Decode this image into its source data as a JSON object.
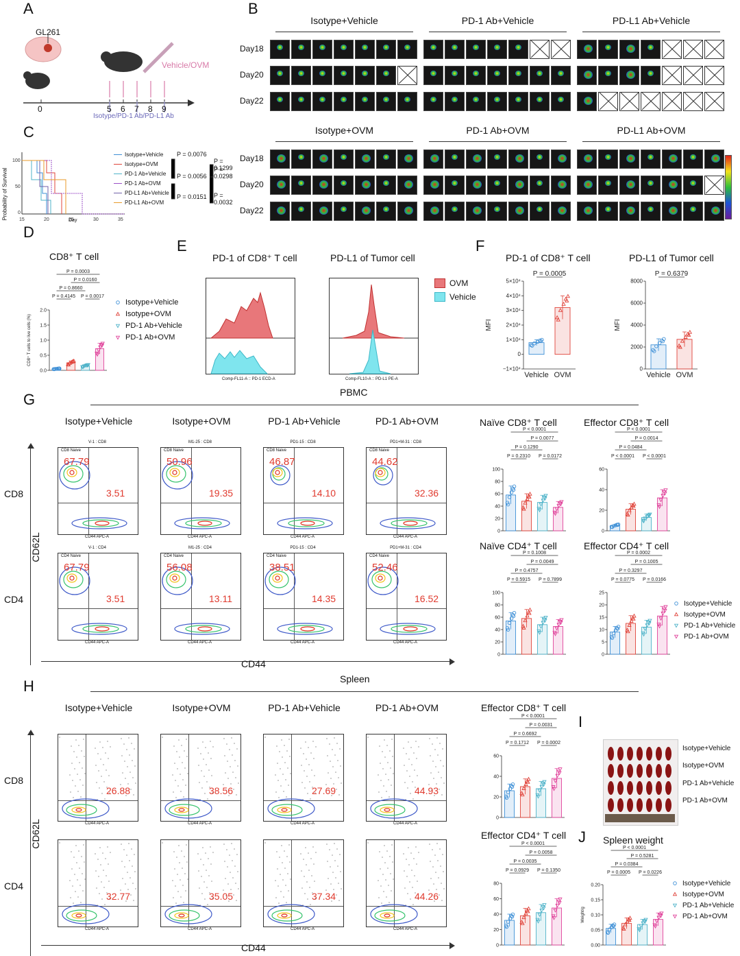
{
  "panels": {
    "A": {
      "letter": "A",
      "cell_line": "GL261",
      "treatment": "Vehicle/OVM",
      "antibody": "Isotype/PD-1 Ab/PD-L1 Ab",
      "timeline_ticks": [
        "0",
        "5",
        "6",
        "7",
        "8",
        "9"
      ]
    },
    "B": {
      "letter": "B",
      "groups_top": [
        "Isotype+Vehicle",
        "PD-1 Ab+Vehicle",
        "PD-L1 Ab+Vehicle"
      ],
      "groups_bottom": [
        "Isotype+OVM",
        "PD-1 Ab+OVM",
        "PD-L1 Ab+OVM"
      ],
      "days": [
        "Day18",
        "Day20",
        "Day22"
      ],
      "alive_top": [
        [
          7,
          6,
          7
        ],
        [
          5,
          7,
          7
        ],
        [
          4,
          4,
          1
        ]
      ],
      "alive_bottom": [
        [
          7,
          7,
          7
        ],
        [
          7,
          7,
          7
        ],
        [
          7,
          6,
          7
        ]
      ]
    },
    "C": {
      "letter": "C",
      "ylabel": "Probability of Survival",
      "xlabel": "Day",
      "legend": [
        "Isotype+Vehicle",
        "Isotype+OVM",
        "PD-1 Ab+Vehicle",
        "PD-1 Ab+OVM",
        "PD-L1 Ab+Vehicle",
        "PD-L1 Ab+OVM"
      ],
      "pvalues": [
        "P = 0.0076",
        "P = 0.1299",
        "P = 0.0056",
        "P = 0.0298",
        "P = 0.0151",
        "P = 0.0032"
      ]
    },
    "D": {
      "letter": "D",
      "title": "CD8⁺ T cell",
      "ylabel": "CD8⁺ T cells to live cells (%)",
      "pvalues": [
        "P = 0.0003",
        "P = 0.0160",
        "P = 0.8660",
        "P = 0.4145",
        "P = 0.0017"
      ],
      "legend": [
        "Isotype+Vehicle",
        "Isotype+OVM",
        "PD-1 Ab+Vehicle",
        "PD-1 Ab+OVM"
      ]
    },
    "E": {
      "letter": "E",
      "title1": "PD-1 of CD8⁺ T cell",
      "title2": "PD-L1 of Tumor cell",
      "axis1": "Comp-FL11-A :: PD-1 ECD-A",
      "axis2": "Comp-FL10-A :: PD-L1 PE-A",
      "legend": [
        "OVM",
        "Vehicle"
      ]
    },
    "F": {
      "letter": "F",
      "title1": "PD-1 of CD8⁺ T cell",
      "title2": "PD-L1 of Tumor cell",
      "p1": "P = 0.0005",
      "p2": "P = 0.6379",
      "ylabel": "MFI",
      "xcats": [
        "Vehicle",
        "OVM"
      ]
    },
    "G": {
      "letter": "G",
      "title": "PBMC",
      "groups": [
        "Isotype+Vehicle",
        "Isotype+OVM",
        "PD-1 Ab+Vehicle",
        "PD-1 Ab+OVM"
      ],
      "rows": [
        "CD8",
        "CD4"
      ],
      "xlabel": "CD44",
      "ylabel": "CD62L",
      "cd8_values": [
        [
          "67.79",
          "3.51"
        ],
        [
          "50.96",
          "19.35"
        ],
        [
          "46.87",
          "14.10"
        ],
        [
          "44.62",
          "32.36"
        ]
      ],
      "cd4_values": [
        [
          "67.79",
          "3.51"
        ],
        [
          "56.08",
          "13.11"
        ],
        [
          "38.51",
          "14.35"
        ],
        [
          "52.46",
          "16.52"
        ]
      ],
      "cd8_samples": [
        "V-1 : CD8",
        "M1-25 : CD8",
        "PD1-15 : CD8",
        "PD1+M-31 : CD8"
      ],
      "cd4_samples": [
        "V-1 : CD4",
        "M1-25 : CD4",
        "PD1-15 : CD4",
        "PD1+M-31 : CD4"
      ],
      "charts": [
        {
          "title": "Naïve CD8⁺ T cell",
          "p": [
            "P < 0.0001",
            "P = 0.0077",
            "P = 0.1290",
            "P = 0.2310",
            "P = 0.0172"
          ]
        },
        {
          "title": "Effector CD8⁺ T cell",
          "p": [
            "P < 0.0001",
            "P = 0.0014",
            "P = 0.0484",
            "P < 0.0001",
            "P < 0.0001"
          ]
        },
        {
          "title": "Naïve CD4⁺ T cell",
          "p": [
            "P = 0.1008",
            "P = 0.0049",
            "P = 0.4757",
            "P = 0.5915",
            "P = 0.7899"
          ]
        },
        {
          "title": "Effector CD4⁺ T cell",
          "p": [
            "P = 0.0002",
            "P = 0.1005",
            "P = 0.3297",
            "P = 0.0775",
            "P = 0.0166"
          ]
        }
      ],
      "legend": [
        "Isotype+Vehicle",
        "Isotype+OVM",
        "PD-1 Ab+Vehicle",
        "PD-1 Ab+OVM"
      ]
    },
    "H": {
      "letter": "H",
      "title": "Spleen",
      "groups": [
        "Isotype+Vehicle",
        "Isotype+OVM",
        "PD-1 Ab+Vehicle",
        "PD-1 Ab+OVM"
      ],
      "rows": [
        "CD8",
        "CD4"
      ],
      "xlabel": "CD44",
      "ylabel": "CD62L",
      "cd8_values": [
        "26.88",
        "38.56",
        "27.69",
        "44.93"
      ],
      "cd4_values": [
        "32.77",
        "35.05",
        "37.34",
        "44.26"
      ],
      "charts": [
        {
          "title": "Effector CD8⁺ T cell",
          "p": [
            "P < 0.0001",
            "P = 0.0031",
            "P = 0.6692",
            "P = 0.1712",
            "P = 0.0002"
          ]
        },
        {
          "title": "Effector CD4⁺ T cell",
          "p": [
            "P < 0.0001",
            "P = 0.0058",
            "P = 0.0035",
            "P = 0.0929",
            "P = 0.1350"
          ]
        }
      ]
    },
    "I": {
      "letter": "I",
      "rows": [
        "Isotype+Vehicle",
        "Isotype+OVM",
        "PD-1 Ab+Vehicle",
        "PD-1 Ab+OVM"
      ]
    },
    "J": {
      "letter": "J",
      "title": "Spleen weight",
      "ylabel": "Weight/g",
      "pvalues": [
        "P < 0.0001",
        "P = 0.5281",
        "P = 0.0384",
        "P = 0.0005",
        "P = 0.0226"
      ],
      "legend": [
        "Isotype+Vehicle",
        "Isotype+OVM",
        "PD-1 Ab+Vehicle",
        "PD-1 Ab+OVM"
      ]
    }
  },
  "colors": {
    "blue": "#3d8fd6",
    "red": "#e0433a",
    "cyan": "#4fb3c9",
    "purple": "#9b4fc7",
    "magenta": "#e0439b",
    "orange": "#e89a2a",
    "flow_red": "#e03a2e"
  },
  "chart_data": [
    {
      "type": "bar",
      "title": "CD8⁺ T cell",
      "categories": [
        "Isotype+Vehicle",
        "Isotype+OVM",
        "PD-1 Ab+Vehicle",
        "PD-1 Ab+OVM"
      ],
      "values": [
        0.05,
        0.25,
        0.15,
        0.72
      ],
      "ylabel": "CD8⁺ T cells to live cells (%)",
      "ylim": [
        0,
        2.0
      ]
    },
    {
      "type": "bar",
      "title": "PD-1 of CD8⁺ T cell",
      "categories": [
        "Vehicle",
        "OVM"
      ],
      "values": [
        8000,
        32000
      ],
      "ylabel": "MFI",
      "ylim": [
        -10000,
        50000
      ]
    },
    {
      "type": "bar",
      "title": "PD-L1 of Tumor cell",
      "categories": [
        "Vehicle",
        "OVM"
      ],
      "values": [
        2200,
        2700
      ],
      "ylabel": "MFI",
      "ylim": [
        0,
        8000
      ]
    },
    {
      "type": "bar",
      "title": "Naïve CD8⁺ T cell",
      "categories": [
        "Isotype+Vehicle",
        "Isotype+OVM",
        "PD-1 Ab+Vehicle",
        "PD-1 Ab+OVM"
      ],
      "values": [
        58,
        48,
        46,
        38
      ],
      "ylim": [
        0,
        100
      ]
    },
    {
      "type": "bar",
      "title": "Effector CD8⁺ T cell",
      "categories": [
        "Isotype+Vehicle",
        "Isotype+OVM",
        "PD-1 Ab+Vehicle",
        "PD-1 Ab+OVM"
      ],
      "values": [
        5,
        21,
        13,
        32
      ],
      "ylim": [
        0,
        60
      ]
    },
    {
      "type": "bar",
      "title": "Naïve CD4⁺ T cell",
      "categories": [
        "Isotype+Vehicle",
        "Isotype+OVM",
        "PD-1 Ab+Vehicle",
        "PD-1 Ab+OVM"
      ],
      "values": [
        54,
        58,
        48,
        45
      ],
      "ylim": [
        0,
        100
      ]
    },
    {
      "type": "bar",
      "title": "Effector CD4⁺ T cell",
      "categories": [
        "Isotype+Vehicle",
        "Isotype+OVM",
        "PD-1 Ab+Vehicle",
        "PD-1 Ab+OVM"
      ],
      "values": [
        9,
        12.5,
        11,
        15.5
      ],
      "ylim": [
        0,
        25
      ]
    },
    {
      "type": "bar",
      "title": "Effector CD8⁺ T cell",
      "categories": [
        "Isotype+Vehicle",
        "Isotype+OVM",
        "PD-1 Ab+Vehicle",
        "PD-1 Ab+OVM"
      ],
      "values": [
        26,
        30,
        28,
        38
      ],
      "ylim": [
        0,
        60
      ]
    },
    {
      "type": "bar",
      "title": "Effector CD4⁺ T cell",
      "categories": [
        "Isotype+Vehicle",
        "Isotype+OVM",
        "PD-1 Ab+Vehicle",
        "PD-1 Ab+OVM"
      ],
      "values": [
        32,
        38,
        42,
        48
      ],
      "ylim": [
        0,
        80
      ]
    },
    {
      "type": "bar",
      "title": "Spleen weight",
      "categories": [
        "Isotype+Vehicle",
        "Isotype+OVM",
        "PD-1 Ab+Vehicle",
        "PD-1 Ab+OVM"
      ],
      "values": [
        0.055,
        0.072,
        0.068,
        0.085
      ],
      "ylabel": "Weight/g",
      "ylim": [
        0,
        0.2
      ]
    }
  ]
}
